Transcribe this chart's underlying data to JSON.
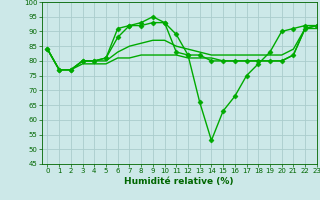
{
  "title": "",
  "xlabel": "Humidité relative (%)",
  "ylabel": "",
  "background_color": "#cce8e8",
  "grid_color": "#aacccc",
  "line_color": "#00aa00",
  "xlim": [
    -0.5,
    23
  ],
  "ylim": [
    45,
    100
  ],
  "yticks": [
    45,
    50,
    55,
    60,
    65,
    70,
    75,
    80,
    85,
    90,
    95,
    100
  ],
  "xticks": [
    0,
    1,
    2,
    3,
    4,
    5,
    6,
    7,
    8,
    9,
    10,
    11,
    12,
    13,
    14,
    15,
    16,
    17,
    18,
    19,
    20,
    21,
    22,
    23
  ],
  "series": [
    {
      "x": [
        0,
        1,
        2,
        3,
        4,
        5,
        6,
        7,
        8,
        9,
        10,
        11,
        12,
        13,
        14,
        15,
        16,
        17,
        18,
        19,
        20,
        21,
        22,
        23
      ],
      "y": [
        84,
        77,
        77,
        80,
        80,
        81,
        88,
        92,
        92,
        93,
        93,
        83,
        82,
        82,
        80,
        80,
        80,
        80,
        80,
        80,
        80,
        82,
        91,
        92
      ],
      "marker": "D",
      "markersize": 2.5,
      "linewidth": 1.0
    },
    {
      "x": [
        0,
        1,
        2,
        3,
        4,
        5,
        6,
        7,
        8,
        9,
        10,
        11,
        12,
        13,
        14,
        15,
        16,
        17,
        18,
        19,
        20,
        21,
        22,
        23
      ],
      "y": [
        84,
        77,
        77,
        80,
        80,
        81,
        91,
        92,
        93,
        95,
        93,
        89,
        82,
        66,
        53,
        63,
        68,
        75,
        79,
        83,
        90,
        91,
        92,
        92
      ],
      "marker": "D",
      "markersize": 2.5,
      "linewidth": 1.0
    },
    {
      "x": [
        0,
        1,
        2,
        3,
        4,
        5,
        6,
        7,
        8,
        9,
        10,
        11,
        12,
        13,
        14,
        15,
        16,
        17,
        18,
        19,
        20,
        21,
        22,
        23
      ],
      "y": [
        84,
        77,
        77,
        80,
        80,
        80,
        83,
        85,
        86,
        87,
        87,
        85,
        84,
        83,
        82,
        82,
        82,
        82,
        82,
        82,
        82,
        84,
        91,
        92
      ],
      "marker": null,
      "markersize": 0,
      "linewidth": 1.0
    },
    {
      "x": [
        0,
        1,
        2,
        3,
        4,
        5,
        6,
        7,
        8,
        9,
        10,
        11,
        12,
        13,
        14,
        15,
        16,
        17,
        18,
        19,
        20,
        21,
        22,
        23
      ],
      "y": [
        84,
        77,
        77,
        79,
        79,
        79,
        81,
        81,
        82,
        82,
        82,
        82,
        81,
        81,
        81,
        80,
        80,
        80,
        80,
        80,
        80,
        82,
        91,
        91
      ],
      "marker": null,
      "markersize": 0,
      "linewidth": 1.0
    }
  ]
}
